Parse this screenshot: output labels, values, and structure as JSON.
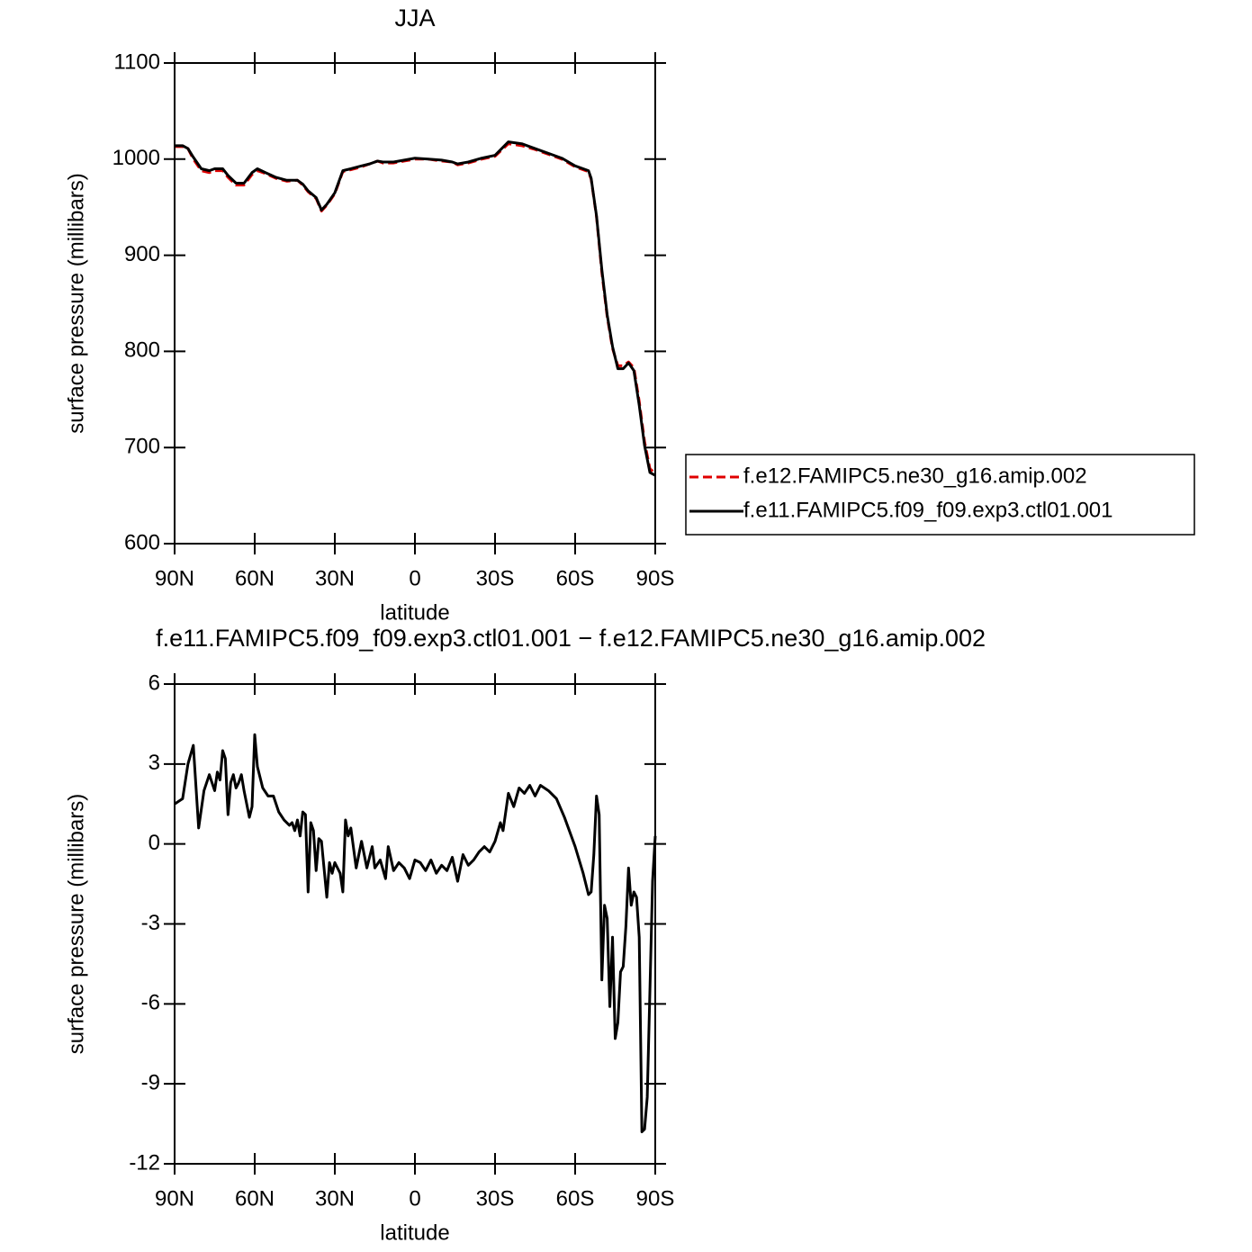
{
  "chart_data": [
    {
      "type": "line",
      "title": "JJA",
      "xlabel": "latitude",
      "ylabel": "surface pressure (millibars)",
      "x": [
        90,
        87,
        85,
        83,
        80,
        77,
        75,
        72,
        70,
        67,
        64,
        61,
        59,
        56,
        52,
        48,
        44,
        42,
        40,
        37,
        35,
        33,
        30,
        27,
        24,
        20,
        17,
        14,
        12,
        8,
        4,
        0,
        -5,
        -10,
        -14,
        -16,
        -20,
        -25,
        -30,
        -35,
        -40,
        -45,
        -50,
        -55,
        -60,
        -65,
        -66,
        -68,
        -70,
        -72,
        -74,
        -76,
        -78,
        -80,
        -82,
        -84,
        -86,
        -88,
        -90
      ],
      "series": [
        {
          "name": "f.e12.FAMIPC5.ne30_g16.amip.002",
          "color": "#e00000",
          "dash": true,
          "values": [
            1013,
            1013,
            1011,
            1000,
            988,
            986,
            988,
            988,
            981,
            973,
            973,
            984,
            988,
            985,
            980,
            977,
            978,
            973,
            966,
            959,
            946,
            952,
            964,
            987,
            989,
            992,
            995,
            998,
            996,
            996,
            998,
            1000,
            1000,
            998,
            997,
            994,
            996,
            1000,
            1003,
            1016,
            1014,
            1010,
            1005,
            1000,
            992,
            987,
            979,
            940,
            882,
            836,
            803,
            785,
            785,
            789,
            783,
            748,
            706,
            678,
            673
          ]
        },
        {
          "name": "f.e11.FAMIPC5.f09_f09.exp3.ctl01.001",
          "color": "#000000",
          "dash": false,
          "values": [
            1014,
            1014,
            1011,
            1002,
            990,
            988,
            990,
            990,
            983,
            975,
            975,
            986,
            990,
            986,
            981,
            978,
            978,
            974,
            967,
            960,
            947,
            953,
            965,
            988,
            990,
            993,
            995,
            998,
            997,
            997,
            999,
            1001,
            1000,
            999,
            997,
            995,
            997,
            1001,
            1004,
            1018,
            1016,
            1011,
            1006,
            1001,
            993,
            988,
            980,
            941,
            885,
            838,
            805,
            782,
            782,
            788,
            780,
            744,
            702,
            674,
            671
          ]
        }
      ],
      "xlim": [
        90,
        -90
      ],
      "xticks": [
        {
          "value": 90,
          "label": "90N"
        },
        {
          "value": 60,
          "label": "60N"
        },
        {
          "value": 30,
          "label": "30N"
        },
        0,
        {
          "value": -30,
          "label": "30S"
        },
        {
          "value": -60,
          "label": "60S"
        },
        {
          "value": -90,
          "label": "90S"
        }
      ],
      "ylim": [
        600,
        1100
      ],
      "yticks": [
        600,
        700,
        800,
        900,
        1000,
        1100
      ],
      "legend": "right"
    },
    {
      "type": "line",
      "title": "f.e11.FAMIPC5.f09_f09.exp3.ctl01.001 − f.e12.FAMIPC5.ne30_g16.amip.002",
      "xlabel": "latitude",
      "ylabel": "surface pressure (millibars)",
      "x": [
        90,
        87,
        85,
        83,
        81,
        79,
        77,
        75,
        74,
        73,
        72,
        71,
        70,
        69,
        68,
        67,
        66,
        65,
        64,
        62,
        61,
        60,
        59,
        57,
        55,
        53,
        51,
        49,
        47,
        46,
        45,
        44,
        43,
        42,
        41,
        40,
        39,
        38,
        37,
        36,
        35,
        33,
        32,
        31,
        30,
        28,
        27,
        26,
        25,
        24,
        22,
        20,
        18,
        16,
        15,
        13,
        11,
        10,
        8,
        6,
        4,
        2,
        0,
        -2,
        -4,
        -6,
        -8,
        -10,
        -12,
        -14,
        -16,
        -18,
        -20,
        -22,
        -24,
        -26,
        -28,
        -30,
        -32,
        -33,
        -35,
        -37,
        -39,
        -41,
        -43,
        -45,
        -47,
        -50,
        -53,
        -56,
        -60,
        -63,
        -65,
        -66,
        -67,
        -68,
        -69,
        -70,
        -71,
        -72,
        -73,
        -74,
        -75,
        -76,
        -77,
        -78,
        -79,
        -80,
        -81,
        -82,
        -83,
        -84,
        -85,
        -86,
        -87,
        -88,
        -89,
        -90
      ],
      "values": [
        1.5,
        1.7,
        3.0,
        3.7,
        0.6,
        2.0,
        2.6,
        2.0,
        2.7,
        2.4,
        3.5,
        3.2,
        1.1,
        2.3,
        2.6,
        2.1,
        2.3,
        2.6,
        2.0,
        1.0,
        1.4,
        4.1,
        2.9,
        2.1,
        1.8,
        1.8,
        1.2,
        0.9,
        0.7,
        0.8,
        0.5,
        0.9,
        0.3,
        1.2,
        1.1,
        -1.8,
        0.8,
        0.5,
        -1.0,
        0.2,
        0.1,
        -2.0,
        -0.7,
        -1.1,
        -0.7,
        -1.1,
        -1.8,
        0.9,
        0.3,
        0.6,
        -0.9,
        0.1,
        -0.9,
        -0.1,
        -0.9,
        -0.6,
        -1.3,
        -0.1,
        -1.0,
        -0.7,
        -0.9,
        -1.3,
        -0.6,
        -0.7,
        -1.0,
        -0.6,
        -1.1,
        -0.8,
        -1.0,
        -0.5,
        -1.4,
        -0.4,
        -0.8,
        -0.6,
        -0.3,
        -0.1,
        -0.3,
        0.1,
        0.8,
        0.5,
        1.9,
        1.4,
        2.1,
        1.9,
        2.2,
        1.8,
        2.2,
        2.0,
        1.7,
        1.0,
        -0.1,
        -1.1,
        -1.9,
        -1.8,
        -0.4,
        1.8,
        1.1,
        -5.1,
        -2.3,
        -2.8,
        -6.1,
        -3.5,
        -7.3,
        -6.7,
        -4.8,
        -4.6,
        -3.1,
        -0.9,
        -2.3,
        -1.8,
        -2.0,
        -3.5,
        -10.8,
        -10.7,
        -9.5,
        -5.5,
        -1.4,
        0.3
      ],
      "color": "#000000",
      "xlim": [
        90,
        -90
      ],
      "xticks": [
        {
          "value": 90,
          "label": "90N"
        },
        {
          "value": 60,
          "label": "60N"
        },
        {
          "value": 30,
          "label": "30N"
        },
        0,
        {
          "value": -30,
          "label": "30S"
        },
        {
          "value": -60,
          "label": "60S"
        },
        {
          "value": -90,
          "label": "90S"
        }
      ],
      "ylim": [
        -12,
        6
      ],
      "yticks": [
        -12,
        -9,
        -6,
        -3,
        0,
        3,
        6
      ]
    }
  ]
}
